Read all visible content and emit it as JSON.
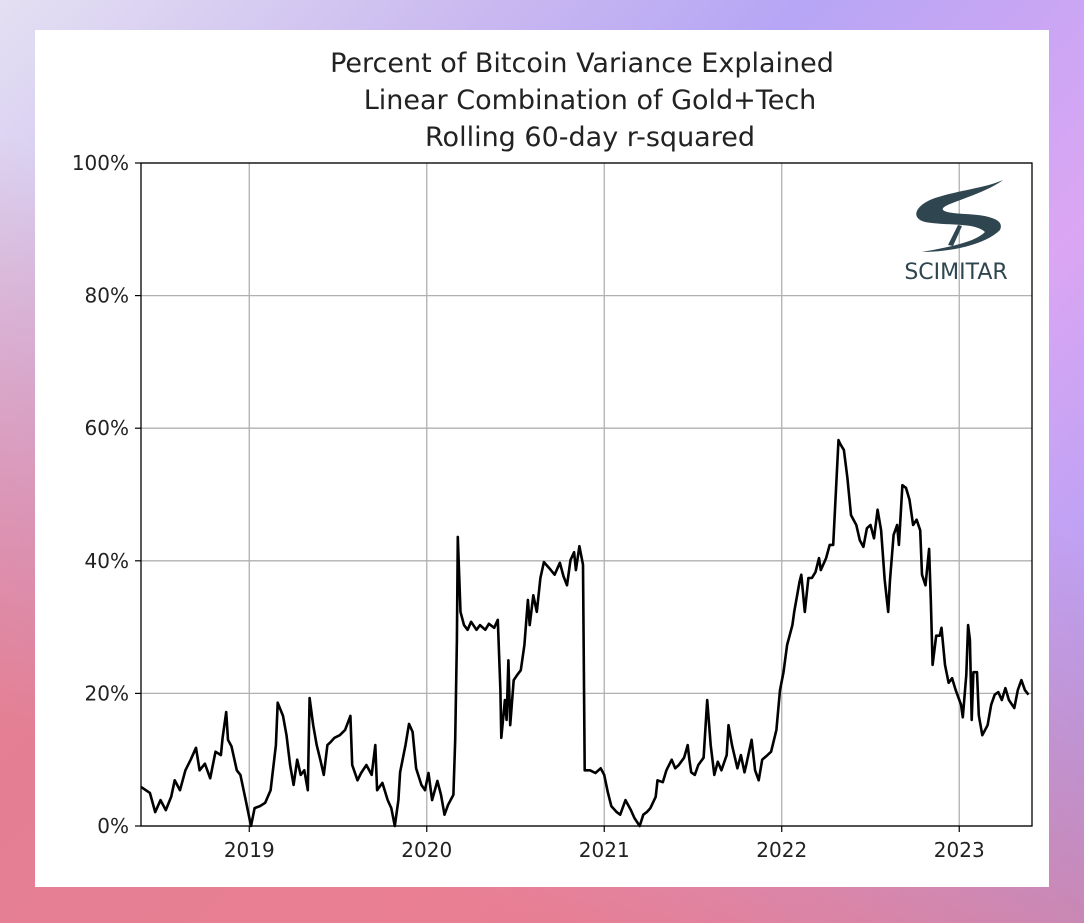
{
  "chart_data": {
    "type": "line",
    "title": [
      "Percent of Bitcoin Variance Explained",
      "Linear Combination of Gold+Tech",
      "Rolling 60-day r-squared"
    ],
    "xlabel": "",
    "ylabel": "",
    "ylim": [
      0,
      100
    ],
    "xlim": [
      2018.39,
      2023.41
    ],
    "yticks": [
      {
        "v": 0,
        "label": "0%"
      },
      {
        "v": 20,
        "label": "20%"
      },
      {
        "v": 40,
        "label": "40%"
      },
      {
        "v": 60,
        "label": "60%"
      },
      {
        "v": 80,
        "label": "80%"
      },
      {
        "v": 100,
        "label": "100%"
      }
    ],
    "xticks": [
      {
        "v": 2019,
        "label": "2019"
      },
      {
        "v": 2020,
        "label": "2020"
      },
      {
        "v": 2021,
        "label": "2021"
      },
      {
        "v": 2022,
        "label": "2022"
      },
      {
        "v": 2023,
        "label": "2023"
      }
    ],
    "grid": true,
    "line_color": "#000000",
    "logo_text": "SCIMITAR",
    "series": [
      {
        "name": "r-squared",
        "x": [
          2018.39,
          2018.44,
          2018.47,
          2018.5,
          2018.53,
          2018.56,
          2018.58,
          2018.61,
          2018.64,
          2018.67,
          2018.7,
          2018.72,
          2018.75,
          2018.78,
          2018.81,
          2018.84,
          2018.85,
          2018.87,
          2018.88,
          2018.9,
          2018.93,
          2018.95,
          2018.98,
          2019.01,
          2019.03,
          2019.06,
          2019.09,
          2019.12,
          2019.15,
          2019.16,
          2019.19,
          2019.21,
          2019.23,
          2019.25,
          2019.27,
          2019.29,
          2019.31,
          2019.33,
          2019.34,
          2019.36,
          2019.38,
          2019.4,
          2019.42,
          2019.44,
          2019.46,
          2019.48,
          2019.51,
          2019.54,
          2019.57,
          2019.58,
          2019.61,
          2019.63,
          2019.66,
          2019.69,
          2019.71,
          2019.72,
          2019.75,
          2019.78,
          2019.8,
          2019.82,
          2019.84,
          2019.85,
          2019.88,
          2019.9,
          2019.92,
          2019.94,
          2019.97,
          2019.99,
          2020.01,
          2020.03,
          2020.06,
          2020.08,
          2020.1,
          2020.12,
          2020.15,
          2020.16,
          2020.17,
          2020.175,
          2020.19,
          2020.21,
          2020.23,
          2020.25,
          2020.28,
          2020.3,
          2020.33,
          2020.35,
          2020.38,
          2020.4,
          2020.415,
          2020.42,
          2020.44,
          2020.45,
          2020.46,
          2020.47,
          2020.49,
          2020.51,
          2020.53,
          2020.55,
          2020.57,
          2020.58,
          2020.6,
          2020.62,
          2020.64,
          2020.66,
          2020.69,
          2020.72,
          2020.75,
          2020.77,
          2020.79,
          2020.81,
          2020.83,
          2020.84,
          2020.86,
          2020.88,
          2020.89,
          2020.92,
          2020.95,
          2020.98,
          2021.0,
          2021.02,
          2021.04,
          2021.07,
          2021.09,
          2021.12,
          2021.15,
          2021.17,
          2021.2,
          2021.22,
          2021.24,
          2021.26,
          2021.29,
          2021.3,
          2021.33,
          2021.35,
          2021.38,
          2021.4,
          2021.42,
          2021.45,
          2021.47,
          2021.48,
          2021.49,
          2021.51,
          2021.53,
          2021.56,
          2021.58,
          2021.6,
          2021.62,
          2021.64,
          2021.66,
          2021.69,
          2021.7,
          2021.72,
          2021.75,
          2021.77,
          2021.79,
          2021.8,
          2021.83,
          2021.85,
          2021.87,
          2021.89,
          2021.92,
          2021.94,
          2021.97,
          2021.99,
          2022.01,
          2022.03,
          2022.06,
          2022.07,
          2022.1,
          2022.11,
          2022.13,
          2022.15,
          2022.17,
          2022.19,
          2022.21,
          2022.22,
          2022.25,
          2022.27,
          2022.29,
          2022.32,
          2022.33,
          2022.35,
          2022.37,
          2022.39,
          2022.42,
          2022.44,
          2022.46,
          2022.48,
          2022.5,
          2022.52,
          2022.54,
          2022.56,
          2022.58,
          2022.6,
          2022.61,
          2022.63,
          2022.65,
          2022.66,
          2022.68,
          2022.7,
          2022.72,
          2022.74,
          2022.76,
          2022.78,
          2022.79,
          2022.81,
          2022.83,
          2022.84,
          2022.85,
          2022.87,
          2022.89,
          2022.9,
          2022.92,
          2022.94,
          2022.96,
          2022.98,
          2023.01,
          2023.02,
          2023.04,
          2023.05,
          2023.06,
          2023.07,
          2023.08,
          2023.1,
          2023.11,
          2023.13,
          2023.16,
          2023.18,
          2023.2,
          2023.22,
          2023.24,
          2023.26,
          2023.28,
          2023.31,
          2023.33,
          2023.35,
          2023.37,
          2023.39
        ],
        "y": [
          5.9,
          5.0,
          2.1,
          3.9,
          2.4,
          4.4,
          6.9,
          5.4,
          8.4,
          10.0,
          11.8,
          8.4,
          9.4,
          7.2,
          11.2,
          10.7,
          13.3,
          17.2,
          13.0,
          12.0,
          8.4,
          7.7,
          3.9,
          0,
          2.7,
          3.0,
          3.5,
          5.4,
          12.2,
          18.6,
          16.6,
          13.7,
          9.2,
          6.2,
          10.0,
          7.7,
          8.4,
          5.4,
          19.3,
          15.2,
          12.2,
          10.0,
          7.7,
          12.2,
          12.7,
          13.3,
          13.7,
          14.5,
          16.6,
          9.2,
          6.9,
          8.0,
          9.2,
          7.7,
          12.2,
          5.4,
          6.5,
          3.9,
          2.7,
          0,
          3.9,
          8.1,
          12.2,
          15.4,
          14.2,
          8.7,
          6.2,
          5.4,
          8.0,
          3.9,
          6.8,
          4.7,
          1.7,
          3.2,
          4.7,
          13.0,
          28.1,
          43.6,
          32.3,
          30.3,
          29.6,
          30.8,
          29.6,
          30.3,
          29.6,
          30.5,
          29.9,
          31.1,
          20.5,
          13.3,
          19.0,
          16.0,
          25.0,
          15.2,
          22.0,
          22.8,
          23.5,
          27.3,
          34.1,
          30.3,
          34.8,
          32.3,
          37.4,
          39.8,
          38.9,
          37.9,
          39.7,
          37.7,
          36.3,
          40.1,
          41.3,
          38.6,
          42.2,
          39.4,
          8.4,
          8.4,
          8.0,
          8.7,
          7.7,
          5.1,
          3.0,
          2.1,
          1.7,
          3.9,
          2.4,
          1.2,
          0,
          1.7,
          2.1,
          2.7,
          4.4,
          6.9,
          6.6,
          8.4,
          10.0,
          8.7,
          9.2,
          10.3,
          12.2,
          10.0,
          8.1,
          7.7,
          9.2,
          10.3,
          19.0,
          12.2,
          7.7,
          9.7,
          8.4,
          10.7,
          15.2,
          12.2,
          8.7,
          10.7,
          8.1,
          9.2,
          13.0,
          8.4,
          6.9,
          10.0,
          10.7,
          11.2,
          14.5,
          20.5,
          23.2,
          27.3,
          30.3,
          32.3,
          36.8,
          37.9,
          32.3,
          37.4,
          37.4,
          38.3,
          40.4,
          38.6,
          40.4,
          42.4,
          42.4,
          58.2,
          57.6,
          56.7,
          52.5,
          46.9,
          45.4,
          43.1,
          42.1,
          44.9,
          45.4,
          43.4,
          47.7,
          44.6,
          37.1,
          32.3,
          37.1,
          43.9,
          45.4,
          42.4,
          51.4,
          51.0,
          49.2,
          45.4,
          46.2,
          44.6,
          37.9,
          36.3,
          41.8,
          34.1,
          24.3,
          28.7,
          28.7,
          29.9,
          24.3,
          21.6,
          22.3,
          20.5,
          18.3,
          16.4,
          22.8,
          30.3,
          28.1,
          16.0,
          23.2,
          23.2,
          16.7,
          13.7,
          15.2,
          18.3,
          19.8,
          20.2,
          19.0,
          20.8,
          19.0,
          17.8,
          20.5,
          22.0,
          20.5,
          19.8
        ]
      }
    ]
  }
}
